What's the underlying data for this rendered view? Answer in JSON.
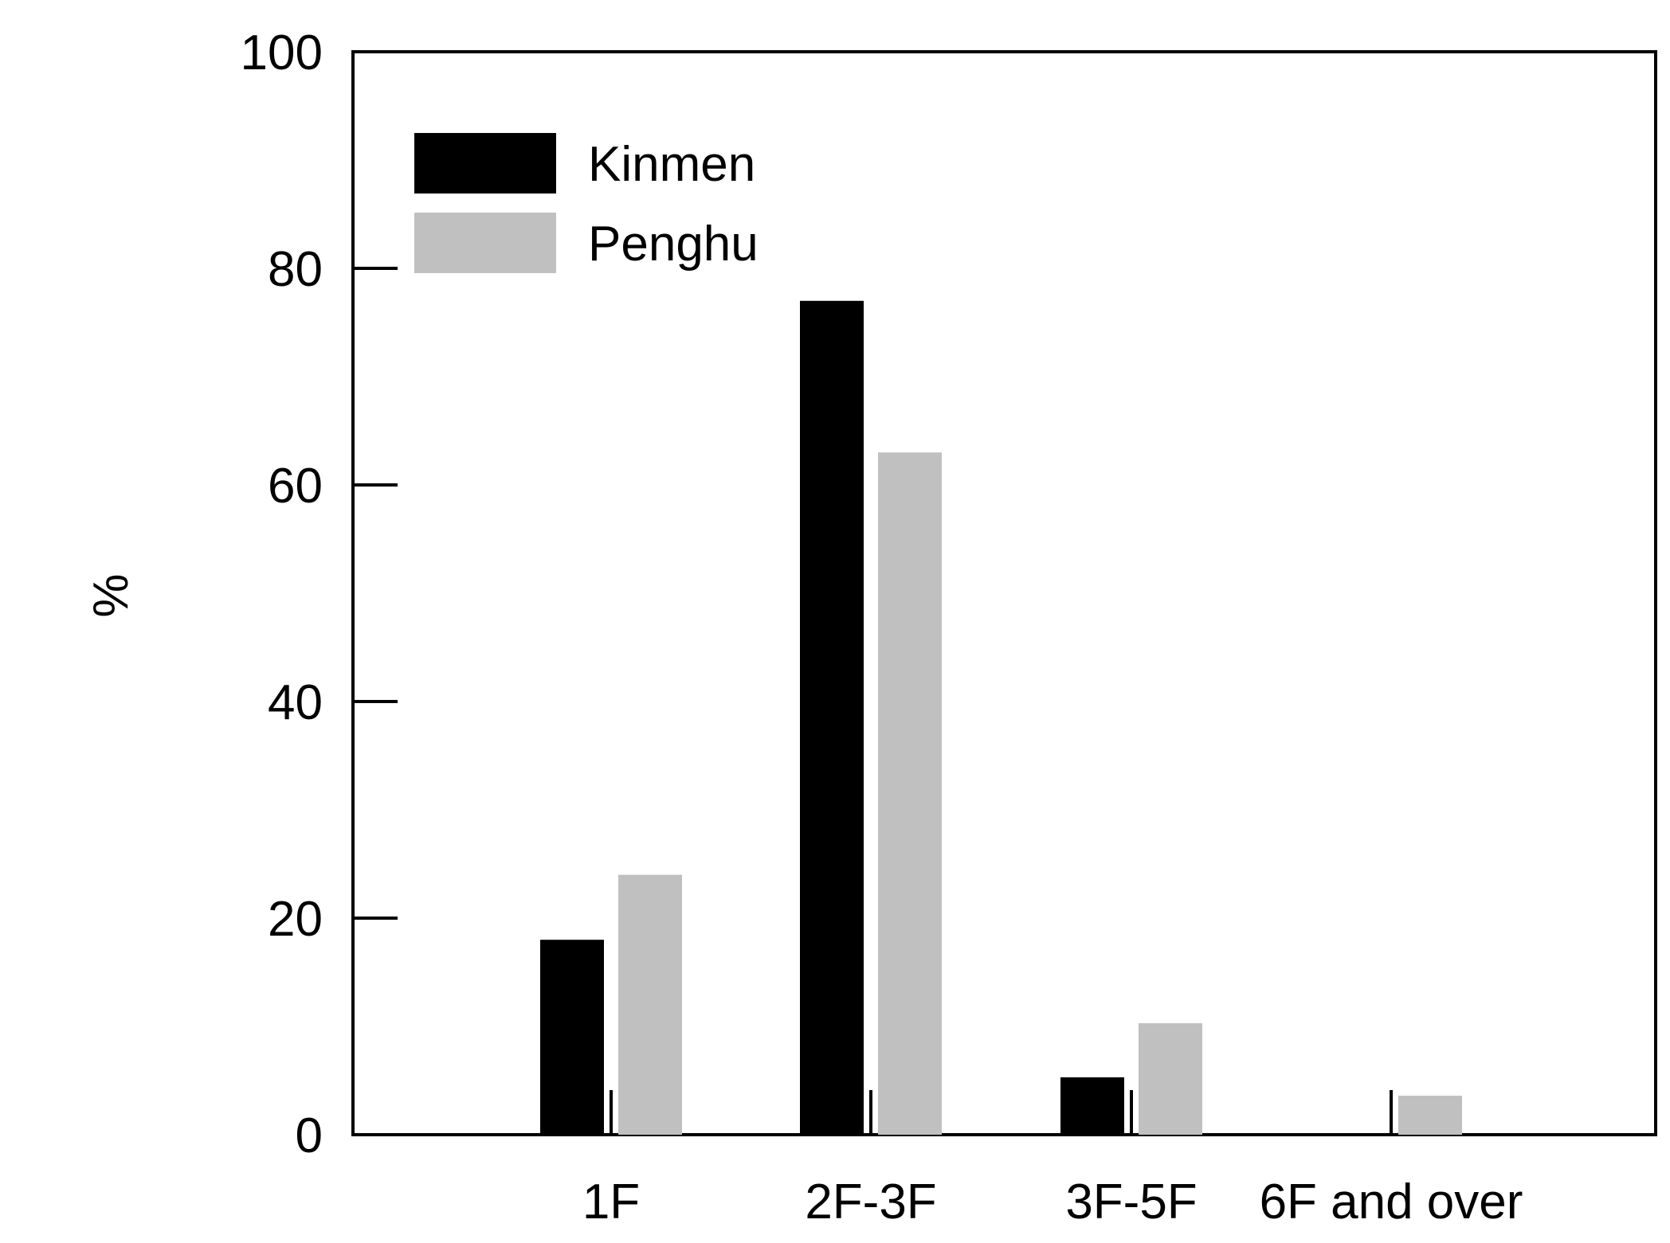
{
  "chart_data": {
    "type": "bar",
    "title": "",
    "xlabel": "",
    "ylabel": "%",
    "ylim": [
      0,
      100
    ],
    "yticks": [
      0,
      20,
      40,
      60,
      80,
      100
    ],
    "categories": [
      "1F",
      "2F-3F",
      "3F-5F",
      "6F and over"
    ],
    "series": [
      {
        "name": "Kinmen",
        "color": "#000000",
        "values": [
          18,
          77,
          5.3,
          0
        ]
      },
      {
        "name": "Penghu",
        "color": "#c0c0c0",
        "values": [
          24,
          63,
          10.3,
          3.6
        ]
      }
    ],
    "legend": "top-left",
    "grid": false
  }
}
